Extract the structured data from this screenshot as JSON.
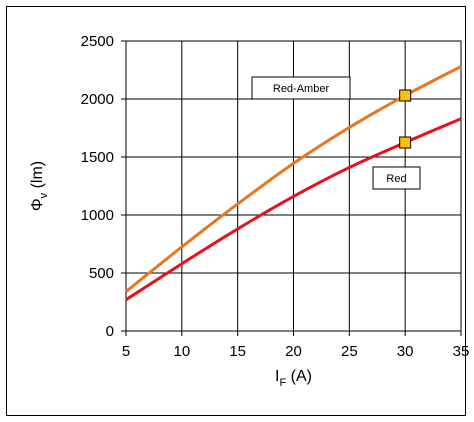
{
  "chart_data": {
    "type": "line",
    "xlabel": "I",
    "xlabel_sub": "F",
    "xlabel_unit": " (A)",
    "ylabel": "Φ",
    "ylabel_sub": "v",
    "ylabel_unit": " (lm)",
    "xlim": [
      5,
      35
    ],
    "ylim": [
      0,
      2500
    ],
    "xticks": [
      5,
      10,
      15,
      20,
      25,
      30,
      35
    ],
    "yticks": [
      0,
      500,
      1000,
      1500,
      2000,
      2500
    ],
    "xtick_labels": [
      "5",
      "10",
      "15",
      "20",
      "25",
      "30",
      "35"
    ],
    "ytick_labels": [
      "0",
      "500",
      "1000",
      "1500",
      "2000",
      "2500"
    ],
    "grid": true,
    "series": [
      {
        "name": "Red-Amber",
        "color": "#E87722",
        "x": [
          5,
          10,
          15,
          20,
          25,
          30,
          35
        ],
        "y": [
          340,
          725,
          1095,
          1445,
          1755,
          2030,
          2280
        ],
        "marker": {
          "x": 30,
          "y": 2030
        }
      },
      {
        "name": "Red",
        "color": "#E8101A",
        "x": [
          5,
          10,
          15,
          20,
          25,
          30,
          35
        ],
        "y": [
          270,
          580,
          880,
          1160,
          1410,
          1625,
          1830
        ],
        "marker": {
          "x": 30,
          "y": 1625
        }
      }
    ],
    "annotations": [
      {
        "text": "Red-Amber",
        "series": 0
      },
      {
        "text": "Red",
        "series": 1
      }
    ],
    "marker_color": "#FFC000"
  }
}
